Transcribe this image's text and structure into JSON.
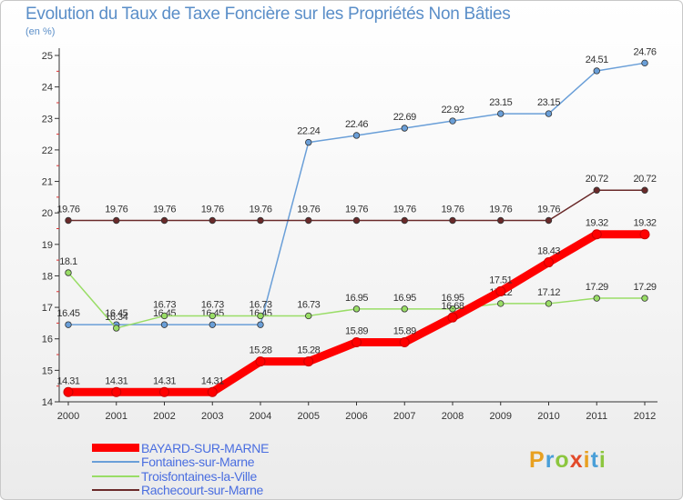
{
  "header": {
    "title": "Evolution du Taux de Taxe Foncière sur les Propriétés Non Bâties",
    "unit": "(en %)"
  },
  "logo": {
    "text": "Proxiti",
    "colors": [
      "#e8a020",
      "#4a9fd8",
      "#8cc63f",
      "#e24a2a"
    ]
  },
  "chart_data": {
    "type": "line",
    "title": "Evolution du Taux de Taxe Foncière sur les Propriétés Non Bâties",
    "ylabel": "(en %)",
    "xlabel": "",
    "categories": [
      "2000",
      "2001",
      "2002",
      "2003",
      "2004",
      "2005",
      "2006",
      "2007",
      "2008",
      "2009",
      "2010",
      "2011",
      "2012"
    ],
    "ylim": [
      14,
      25
    ],
    "yticks": [
      14,
      15,
      16,
      17,
      18,
      19,
      20,
      21,
      22,
      23,
      24,
      25
    ],
    "grid": false,
    "legend_position": "bottom",
    "series": [
      {
        "name": "BAYARD-SUR-MARNE",
        "color": "#ff0000",
        "thick": true,
        "values": [
          14.31,
          14.31,
          14.31,
          14.31,
          15.28,
          15.28,
          15.89,
          15.89,
          16.68,
          17.51,
          18.43,
          19.32,
          19.32
        ],
        "labels": [
          "14.31",
          "14.31",
          "14.31",
          "14.31",
          "15.28",
          "15.28",
          "15.89",
          "15.89",
          "16.68",
          "17.51",
          "18.43",
          "19.32",
          "19.32"
        ]
      },
      {
        "name": "Fontaines-sur-Marne",
        "color": "#6a9fd8",
        "thick": false,
        "values": [
          16.45,
          16.45,
          16.45,
          16.45,
          16.45,
          22.24,
          22.46,
          22.69,
          22.92,
          23.15,
          23.15,
          24.51,
          24.76
        ],
        "labels": [
          "16.45",
          "16.45",
          "16.45",
          "16.45",
          "16.45",
          "22.24",
          "22.46",
          "22.69",
          "22.92",
          "23.15",
          "23.15",
          "24.51",
          "24.76"
        ]
      },
      {
        "name": "Troisfontaines-la-Ville",
        "color": "#99dd66",
        "thick": false,
        "values": [
          18.1,
          16.34,
          16.73,
          16.73,
          16.73,
          16.73,
          16.95,
          16.95,
          16.95,
          17.12,
          17.12,
          17.29,
          17.29
        ],
        "labels": [
          "18.1",
          "16.34",
          "16.73",
          "16.73",
          "16.73",
          "16.73",
          "16.95",
          "16.95",
          "16.95",
          "17.12",
          "17.12",
          "17.29",
          "17.29"
        ]
      },
      {
        "name": "Rachecourt-sur-Marne",
        "color": "#6a2a2a",
        "thick": false,
        "values": [
          19.76,
          19.76,
          19.76,
          19.76,
          19.76,
          19.76,
          19.76,
          19.76,
          19.76,
          19.76,
          19.76,
          20.72,
          20.72
        ],
        "labels": [
          "19.76",
          "19.76",
          "19.76",
          "19.76",
          "19.76",
          "19.76",
          "19.76",
          "19.76",
          "19.76",
          "19.76",
          "19.76",
          "20.72",
          "20.72"
        ]
      }
    ]
  }
}
